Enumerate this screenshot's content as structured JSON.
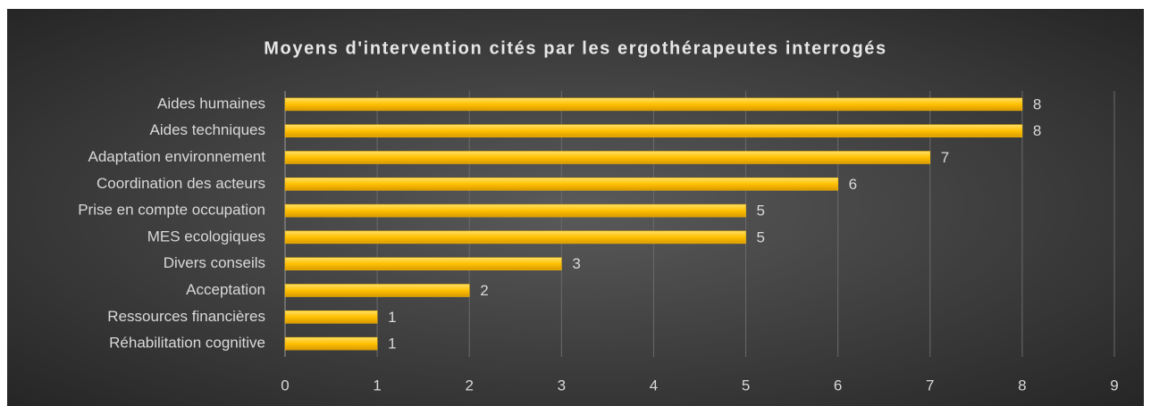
{
  "chart_data": {
    "type": "bar",
    "orientation": "horizontal",
    "title": "Moyens d'intervention cités par les ergothérapeutes interrogés",
    "categories": [
      "Aides humaines",
      "Aides techniques",
      "Adaptation environnement",
      "Coordination des acteurs",
      "Prise en compte occupation",
      "MES ecologiques",
      "Divers conseils",
      "Acceptation",
      "Ressources financières",
      "Réhabilitation cognitive"
    ],
    "values": [
      8,
      8,
      7,
      6,
      5,
      5,
      3,
      2,
      1,
      1
    ],
    "color": "#ffc000",
    "xlim": [
      0,
      9
    ],
    "xticks": [
      0,
      1,
      2,
      3,
      4,
      5,
      6,
      7,
      8,
      9
    ],
    "grid": true
  }
}
